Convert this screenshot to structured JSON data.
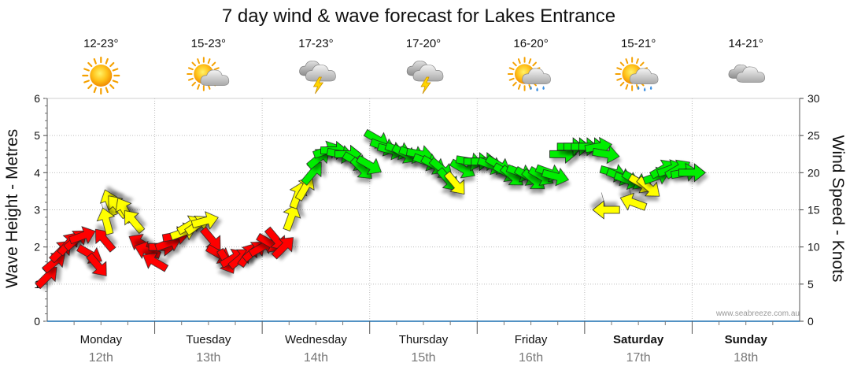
{
  "chart_data": {
    "type": "line",
    "title": "7 day wind & wave forecast for Lakes Entrance",
    "ylabel_left": "Wave Height - Metres",
    "ylabel_right": "Wind Speed - Knots",
    "ylim_left": [
      0,
      6
    ],
    "ylim_right": [
      0,
      30
    ],
    "yticks_left": [
      "0",
      "1",
      "2",
      "3",
      "4",
      "5",
      "6"
    ],
    "yticks_right": [
      "0",
      "5",
      "10",
      "15",
      "20",
      "25",
      "30"
    ],
    "grid": true,
    "watermark": "www.seabreeze.com.au",
    "days": [
      {
        "name": "Monday",
        "date": "12th",
        "temp": "12-23°",
        "icon": "sunny-icon",
        "bold": false
      },
      {
        "name": "Tuesday",
        "date": "13th",
        "temp": "15-23°",
        "icon": "partly-cloudy-icon",
        "bold": false
      },
      {
        "name": "Wednesday",
        "date": "14th",
        "temp": "17-23°",
        "icon": "thunderstorm-icon",
        "bold": false
      },
      {
        "name": "Thursday",
        "date": "15th",
        "temp": "17-20°",
        "icon": "thunderstorm-icon",
        "bold": false
      },
      {
        "name": "Friday",
        "date": "16th",
        "temp": "16-20°",
        "icon": "sun-shower-icon",
        "bold": false
      },
      {
        "name": "Saturday",
        "date": "17th",
        "temp": "15-21°",
        "icon": "sun-shower-icon",
        "bold": true
      },
      {
        "name": "Sunday",
        "date": "18th",
        "temp": "14-21°",
        "icon": "cloudy-icon",
        "bold": true
      }
    ],
    "colors": {
      "light": "#ff0000",
      "moderate": "#ffff00",
      "strong": "#00ee00",
      "outline": "#222222"
    },
    "wind_series": {
      "name": "Wind",
      "points": [
        {
          "t": 0.0,
          "speed": 6,
          "dir": 225
        },
        {
          "t": 0.07,
          "speed": 8,
          "dir": 230
        },
        {
          "t": 0.13,
          "speed": 9.5,
          "dir": 225
        },
        {
          "t": 0.2,
          "speed": 10.5,
          "dir": 220
        },
        {
          "t": 0.27,
          "speed": 11,
          "dir": 230
        },
        {
          "t": 0.33,
          "speed": 11.5,
          "dir": 250
        },
        {
          "t": 0.4,
          "speed": 9,
          "dir": 300
        },
        {
          "t": 0.47,
          "speed": 7.5,
          "dir": 320
        },
        {
          "t": 0.53,
          "speed": 11,
          "dir": 140
        },
        {
          "t": 0.58,
          "speed": 16,
          "dir": 160
        },
        {
          "t": 0.65,
          "speed": 15.5,
          "dir": 140
        },
        {
          "t": 0.72,
          "speed": 15,
          "dir": 150
        },
        {
          "t": 0.8,
          "speed": 13.5,
          "dir": 140
        },
        {
          "t": 0.87,
          "speed": 10.5,
          "dir": 120
        },
        {
          "t": 0.93,
          "speed": 9.5,
          "dir": 110
        },
        {
          "t": 1.0,
          "speed": 8,
          "dir": 120
        },
        {
          "t": 1.07,
          "speed": 10,
          "dir": 270
        },
        {
          "t": 1.13,
          "speed": 10.5,
          "dir": 250
        },
        {
          "t": 1.2,
          "speed": 11.5,
          "dir": 260
        },
        {
          "t": 1.27,
          "speed": 12,
          "dir": 250
        },
        {
          "t": 1.33,
          "speed": 13,
          "dir": 240
        },
        {
          "t": 1.4,
          "speed": 13,
          "dir": 235
        },
        {
          "t": 1.47,
          "speed": 13.5,
          "dir": 255
        },
        {
          "t": 1.53,
          "speed": 11,
          "dir": 320
        },
        {
          "t": 1.6,
          "speed": 9,
          "dir": 300
        },
        {
          "t": 1.67,
          "speed": 8,
          "dir": 330
        },
        {
          "t": 1.73,
          "speed": 8.5,
          "dir": 240
        },
        {
          "t": 1.8,
          "speed": 8.5,
          "dir": 230
        },
        {
          "t": 1.87,
          "speed": 9,
          "dir": 215
        },
        {
          "t": 1.93,
          "speed": 9.5,
          "dir": 230
        },
        {
          "t": 2.0,
          "speed": 10,
          "dir": 240
        },
        {
          "t": 2.07,
          "speed": 10.5,
          "dir": 300
        },
        {
          "t": 2.13,
          "speed": 11,
          "dir": 320
        },
        {
          "t": 2.2,
          "speed": 10,
          "dir": 225
        },
        {
          "t": 2.27,
          "speed": 14,
          "dir": 200
        },
        {
          "t": 2.33,
          "speed": 17,
          "dir": 200
        },
        {
          "t": 2.4,
          "speed": 18,
          "dir": 210
        },
        {
          "t": 2.47,
          "speed": 20,
          "dir": 220
        },
        {
          "t": 2.53,
          "speed": 22,
          "dir": 230
        },
        {
          "t": 2.6,
          "speed": 23,
          "dir": 250
        },
        {
          "t": 2.67,
          "speed": 23,
          "dir": 270
        },
        {
          "t": 2.73,
          "speed": 22.5,
          "dir": 280
        },
        {
          "t": 2.8,
          "speed": 22.5,
          "dir": 270
        },
        {
          "t": 2.87,
          "speed": 21.5,
          "dir": 300
        },
        {
          "t": 2.93,
          "speed": 20.5,
          "dir": 315
        },
        {
          "t": 3.0,
          "speed": 21,
          "dir": 300
        },
        {
          "t": 3.07,
          "speed": 24.5,
          "dir": 300
        },
        {
          "t": 3.13,
          "speed": 23.5,
          "dir": 290
        },
        {
          "t": 3.2,
          "speed": 23,
          "dir": 285
        },
        {
          "t": 3.27,
          "speed": 23,
          "dir": 290
        },
        {
          "t": 3.33,
          "speed": 22.5,
          "dir": 300
        },
        {
          "t": 3.4,
          "speed": 22.5,
          "dir": 290
        },
        {
          "t": 3.47,
          "speed": 22.5,
          "dir": 280
        },
        {
          "t": 3.53,
          "speed": 21.5,
          "dir": 290
        },
        {
          "t": 3.6,
          "speed": 21,
          "dir": 300
        },
        {
          "t": 3.67,
          "speed": 20.5,
          "dir": 310
        },
        {
          "t": 3.73,
          "speed": 19,
          "dir": 320
        },
        {
          "t": 3.8,
          "speed": 18.5,
          "dir": 320
        },
        {
          "t": 3.87,
          "speed": 20.5,
          "dir": 300
        },
        {
          "t": 3.93,
          "speed": 21.5,
          "dir": 280
        },
        {
          "t": 4.0,
          "speed": 21.5,
          "dir": 270
        },
        {
          "t": 4.07,
          "speed": 21.5,
          "dir": 270
        },
        {
          "t": 4.13,
          "speed": 21,
          "dir": 290
        },
        {
          "t": 4.2,
          "speed": 21,
          "dir": 300
        },
        {
          "t": 4.27,
          "speed": 20,
          "dir": 300
        },
        {
          "t": 4.33,
          "speed": 19.5,
          "dir": 310
        },
        {
          "t": 4.4,
          "speed": 20,
          "dir": 290
        },
        {
          "t": 4.47,
          "speed": 19.5,
          "dir": 300
        },
        {
          "t": 4.53,
          "speed": 19,
          "dir": 310
        },
        {
          "t": 4.6,
          "speed": 19.5,
          "dir": 300
        },
        {
          "t": 4.67,
          "speed": 20,
          "dir": 290
        },
        {
          "t": 4.73,
          "speed": 19.5,
          "dir": 285
        },
        {
          "t": 4.8,
          "speed": 22.5,
          "dir": 270
        },
        {
          "t": 4.87,
          "speed": 23.5,
          "dir": 270
        },
        {
          "t": 4.93,
          "speed": 23.5,
          "dir": 270
        },
        {
          "t": 5.0,
          "speed": 23.5,
          "dir": 270
        },
        {
          "t": 5.07,
          "speed": 23.5,
          "dir": 270
        },
        {
          "t": 5.13,
          "speed": 23.5,
          "dir": 260
        },
        {
          "t": 5.2,
          "speed": 22.5,
          "dir": 280
        },
        {
          "t": 5.27,
          "speed": 20,
          "dir": 285
        },
        {
          "t": 5.33,
          "speed": 19.5,
          "dir": 290
        },
        {
          "t": 5.4,
          "speed": 19,
          "dir": 290
        },
        {
          "t": 5.47,
          "speed": 19,
          "dir": 300
        },
        {
          "t": 5.53,
          "speed": 18.5,
          "dir": 300
        },
        {
          "t": 5.6,
          "speed": 18,
          "dir": 310
        },
        {
          "t": 5.67,
          "speed": 19.5,
          "dir": 250
        },
        {
          "t": 5.73,
          "speed": 20.5,
          "dir": 240
        },
        {
          "t": 5.8,
          "speed": 20.5,
          "dir": 250
        },
        {
          "t": 5.87,
          "speed": 20.5,
          "dir": 240
        },
        {
          "t": 5.93,
          "speed": 20,
          "dir": 260
        },
        {
          "t": 6.0,
          "speed": 20,
          "dir": 270
        }
      ]
    },
    "wave_series": {
      "name": "Wave",
      "points": [
        {
          "t": 0.55,
          "height": 2.7,
          "dir": 165
        },
        {
          "t": 5.2,
          "height": 3.0,
          "dir": 90
        },
        {
          "t": 5.45,
          "height": 3.2,
          "dir": 110
        }
      ]
    }
  }
}
